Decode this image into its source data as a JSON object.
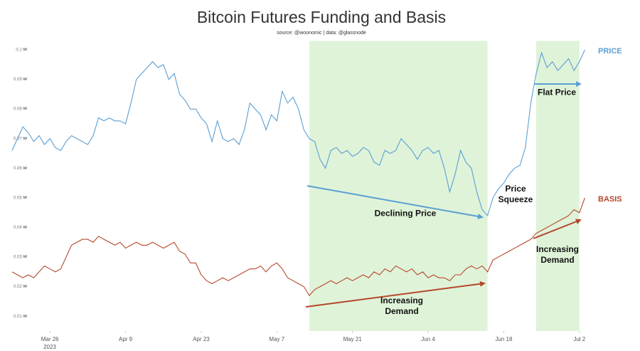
{
  "chart_data": {
    "type": "line",
    "title": "Bitcoin Futures Funding and Basis",
    "subtitle": "source: @woonomic | data: @glassnode",
    "x": [
      "2023-03-19",
      "2023-03-20",
      "2023-03-21",
      "2023-03-22",
      "2023-03-23",
      "2023-03-24",
      "2023-03-25",
      "2023-03-26",
      "2023-03-27",
      "2023-03-28",
      "2023-03-29",
      "2023-03-30",
      "2023-03-31",
      "2023-04-01",
      "2023-04-02",
      "2023-04-03",
      "2023-04-04",
      "2023-04-05",
      "2023-04-06",
      "2023-04-07",
      "2023-04-08",
      "2023-04-09",
      "2023-04-10",
      "2023-04-11",
      "2023-04-12",
      "2023-04-13",
      "2023-04-14",
      "2023-04-15",
      "2023-04-16",
      "2023-04-17",
      "2023-04-18",
      "2023-04-19",
      "2023-04-20",
      "2023-04-21",
      "2023-04-22",
      "2023-04-23",
      "2023-04-24",
      "2023-04-25",
      "2023-04-26",
      "2023-04-27",
      "2023-04-28",
      "2023-04-29",
      "2023-04-30",
      "2023-05-01",
      "2023-05-02",
      "2023-05-03",
      "2023-05-04",
      "2023-05-05",
      "2023-05-06",
      "2023-05-07",
      "2023-05-08",
      "2023-05-09",
      "2023-05-10",
      "2023-05-11",
      "2023-05-12",
      "2023-05-13",
      "2023-05-14",
      "2023-05-15",
      "2023-05-16",
      "2023-05-17",
      "2023-05-18",
      "2023-05-19",
      "2023-05-20",
      "2023-05-21",
      "2023-05-22",
      "2023-05-23",
      "2023-05-24",
      "2023-05-25",
      "2023-05-26",
      "2023-05-27",
      "2023-05-28",
      "2023-05-29",
      "2023-05-30",
      "2023-05-31",
      "2023-06-01",
      "2023-06-02",
      "2023-06-03",
      "2023-06-04",
      "2023-06-05",
      "2023-06-06",
      "2023-06-07",
      "2023-06-08",
      "2023-06-09",
      "2023-06-10",
      "2023-06-11",
      "2023-06-12",
      "2023-06-13",
      "2023-06-14",
      "2023-06-15",
      "2023-06-16",
      "2023-06-17",
      "2023-06-18",
      "2023-06-19",
      "2023-06-20",
      "2023-06-21",
      "2023-06-22",
      "2023-06-23",
      "2023-06-24",
      "2023-06-25",
      "2023-06-26",
      "2023-06-27",
      "2023-06-28",
      "2023-06-29",
      "2023-06-30",
      "2023-07-01",
      "2023-07-02",
      "2023-07-03"
    ],
    "series": [
      {
        "name": "PRICE",
        "color": "#5b9fd3",
        "values": [
          0.066,
          0.07,
          0.074,
          0.072,
          0.069,
          0.071,
          0.068,
          0.07,
          0.067,
          0.066,
          0.069,
          0.071,
          0.07,
          0.069,
          0.068,
          0.071,
          0.077,
          0.076,
          0.077,
          0.076,
          0.076,
          0.075,
          0.082,
          0.09,
          0.092,
          0.094,
          0.096,
          0.094,
          0.095,
          0.09,
          0.092,
          0.085,
          0.083,
          0.08,
          0.08,
          0.077,
          0.075,
          0.069,
          0.076,
          0.07,
          0.069,
          0.07,
          0.068,
          0.073,
          0.082,
          0.08,
          0.078,
          0.073,
          0.078,
          0.076,
          0.086,
          0.082,
          0.084,
          0.08,
          0.073,
          0.07,
          0.069,
          0.063,
          0.06,
          0.066,
          0.067,
          0.065,
          0.066,
          0.064,
          0.065,
          0.067,
          0.066,
          0.062,
          0.061,
          0.066,
          0.065,
          0.066,
          0.07,
          0.068,
          0.066,
          0.063,
          0.066,
          0.067,
          0.065,
          0.066,
          0.06,
          0.052,
          0.058,
          0.066,
          0.062,
          0.06,
          0.052,
          0.046,
          0.044,
          0.05,
          0.053,
          0.055,
          0.058,
          0.06,
          0.061,
          0.067,
          0.082,
          0.092,
          0.099,
          0.094,
          0.096,
          0.093,
          0.095,
          0.097,
          0.093,
          0.096,
          0.1
        ]
      },
      {
        "name": "BASIS",
        "color": "#b5472b",
        "values": [
          0.025,
          0.024,
          0.023,
          0.024,
          0.023,
          0.025,
          0.027,
          0.026,
          0.025,
          0.026,
          0.03,
          0.034,
          0.035,
          0.036,
          0.036,
          0.035,
          0.037,
          0.036,
          0.035,
          0.034,
          0.035,
          0.033,
          0.034,
          0.035,
          0.034,
          0.034,
          0.035,
          0.034,
          0.033,
          0.034,
          0.035,
          0.032,
          0.031,
          0.028,
          0.028,
          0.024,
          0.022,
          0.021,
          0.022,
          0.023,
          0.022,
          0.023,
          0.024,
          0.025,
          0.026,
          0.026,
          0.027,
          0.025,
          0.027,
          0.028,
          0.026,
          0.023,
          0.022,
          0.021,
          0.02,
          0.017,
          0.019,
          0.02,
          0.021,
          0.022,
          0.021,
          0.022,
          0.023,
          0.022,
          0.023,
          0.024,
          0.023,
          0.025,
          0.024,
          0.026,
          0.025,
          0.027,
          0.026,
          0.025,
          0.026,
          0.024,
          0.025,
          0.023,
          0.024,
          0.023,
          0.023,
          0.022,
          0.024,
          0.024,
          0.026,
          0.027,
          0.026,
          0.027,
          0.025,
          0.029,
          0.03,
          0.031,
          0.032,
          0.033,
          0.034,
          0.035,
          0.036,
          0.038,
          0.039,
          0.04,
          0.041,
          0.042,
          0.043,
          0.044,
          0.046,
          0.045,
          0.05
        ]
      }
    ],
    "xlim": [
      "2023-03-19",
      "2023-07-04"
    ],
    "xticks": [
      {
        "value": "2023-03-26",
        "label": "Mar 26"
      },
      {
        "value": "2023-04-09",
        "label": "Apr 9"
      },
      {
        "value": "2023-04-23",
        "label": "Apr 23"
      },
      {
        "value": "2023-05-07",
        "label": "May 7"
      },
      {
        "value": "2023-05-21",
        "label": "May 21"
      },
      {
        "value": "2023-06-04",
        "label": "Jun 4"
      },
      {
        "value": "2023-06-18",
        "label": "Jun 18"
      },
      {
        "value": "2023-07-02",
        "label": "Jul 2"
      }
    ],
    "year_label": "2023",
    "ylim": [
      0.005,
      0.103
    ],
    "yticks": [
      {
        "value": 0.01,
        "label": "0.01 ₩"
      },
      {
        "value": 0.02,
        "label": "0.02 ₩"
      },
      {
        "value": 0.03,
        "label": "0.03 ₩"
      },
      {
        "value": 0.04,
        "label": "0.04 ₩"
      },
      {
        "value": 0.05,
        "label": "0.05 ₩"
      },
      {
        "value": 0.06,
        "label": "0.06 ₩"
      },
      {
        "value": 0.07,
        "label": "0.07 ₩"
      },
      {
        "value": 0.08,
        "label": "0.08 ₩"
      },
      {
        "value": 0.09,
        "label": "0.09 ₩"
      },
      {
        "value": 0.1,
        "label": "0.1 ₩"
      }
    ],
    "highlights": [
      {
        "start": "2023-05-13",
        "end": "2023-06-15",
        "color": "#dff3d9"
      },
      {
        "start": "2023-06-24",
        "end": "2023-07-02",
        "color": "#dff3d9"
      }
    ],
    "annotations": [
      "Declining Price",
      "Increasing Demand",
      "Price Squeeze",
      "Flat Price",
      "Increasing Demand"
    ]
  }
}
